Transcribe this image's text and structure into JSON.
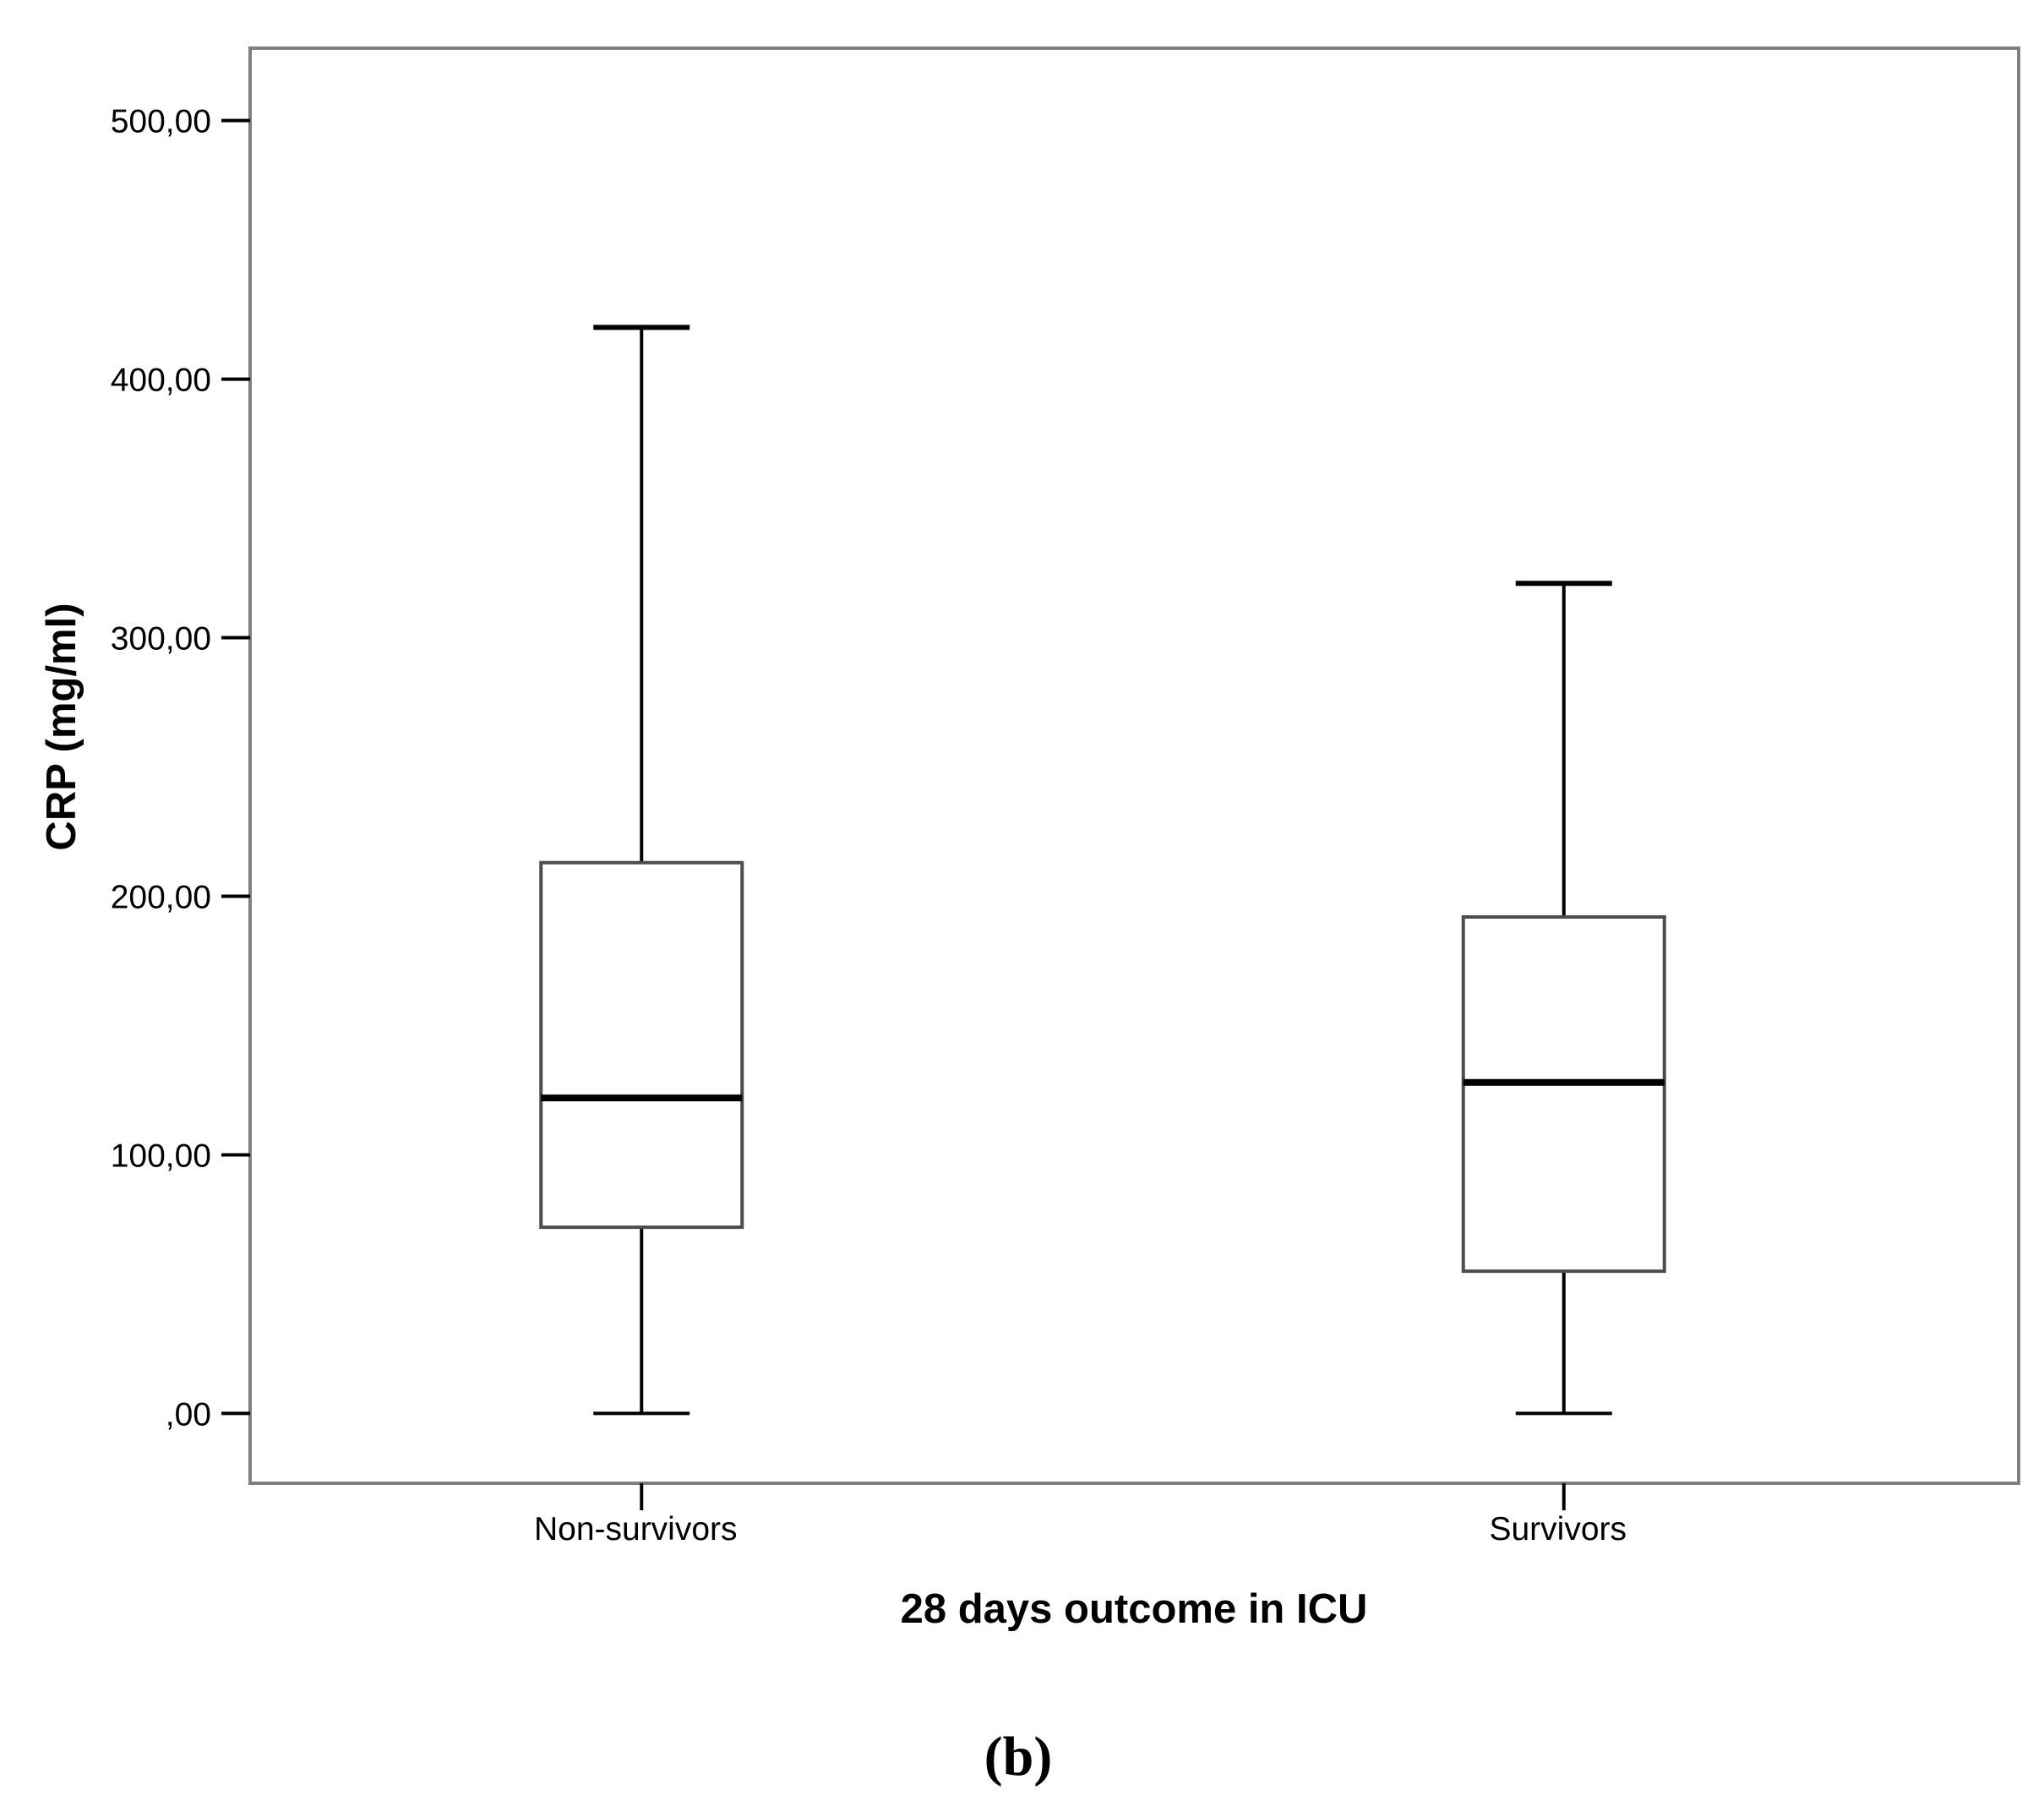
{
  "chart_data": {
    "type": "boxplot",
    "title": "",
    "xlabel": "28 days outcome in ICU",
    "ylabel": "CRP (mg/ml)",
    "ylim": [
      -27,
      528
    ],
    "yticks": [
      {
        "value": 0,
        "label": ",00"
      },
      {
        "value": 100,
        "label": "100,00"
      },
      {
        "value": 200,
        "label": "200,00"
      },
      {
        "value": 300,
        "label": "300,00"
      },
      {
        "value": 400,
        "label": "400,00"
      },
      {
        "value": 500,
        "label": "500,00"
      }
    ],
    "categories": [
      "Non-survivors",
      "Survivors"
    ],
    "boxes": [
      {
        "category": "Non-survivors",
        "min": 0,
        "q1": 72,
        "median": 122,
        "q3": 213,
        "max": 420
      },
      {
        "category": "Survivors",
        "min": 0,
        "q1": 55,
        "median": 128,
        "q3": 192,
        "max": 321
      }
    ],
    "grid": false,
    "legend": "none"
  },
  "panel_label": "(b)"
}
